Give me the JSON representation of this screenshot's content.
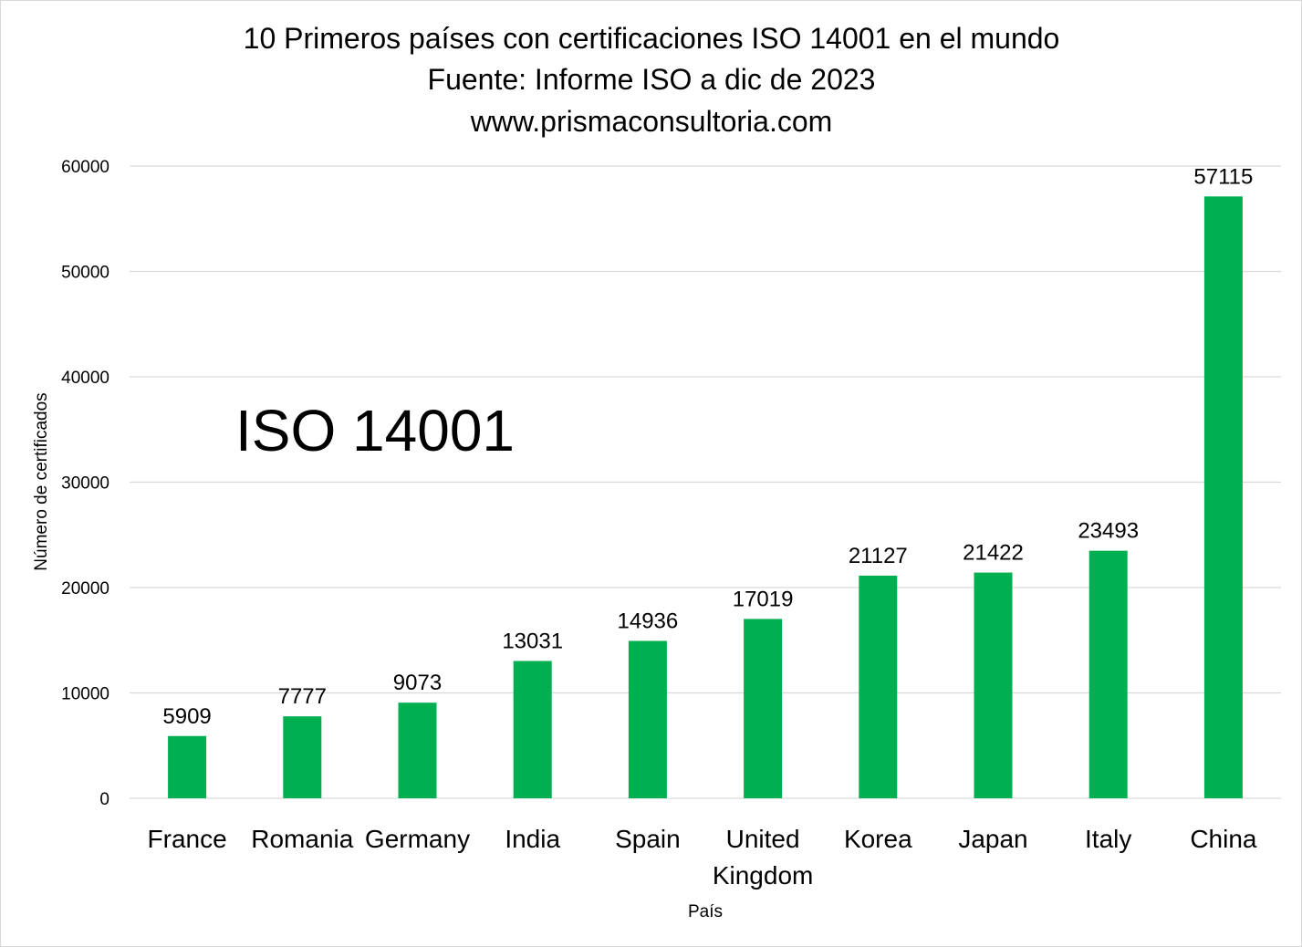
{
  "chart_data": {
    "type": "bar",
    "title_lines": [
      "10 Primeros países con certificaciones ISO 14001 en el mundo",
      "Fuente: Informe ISO a dic de 2023",
      "www.prismaconsultoria.com"
    ],
    "annotation": "ISO 14001",
    "xlabel": "País",
    "ylabel": "Número de certificados",
    "ylim": [
      0,
      60000
    ],
    "y_ticks": [
      0,
      10000,
      20000,
      30000,
      40000,
      50000,
      60000
    ],
    "y_tick_labels": [
      "0",
      "10000",
      "20000",
      "30000",
      "40000",
      "50000",
      "60000"
    ],
    "categories": [
      "France",
      "Romania",
      "Germany",
      "India",
      "Spain",
      "United Kingdom",
      "Korea",
      "Japan",
      "Italy",
      "China"
    ],
    "values": [
      5909,
      7777,
      9073,
      13031,
      14936,
      17019,
      21127,
      21422,
      23493,
      57115
    ],
    "data_labels": [
      "5909",
      "7777",
      "9073",
      "13031",
      "14936",
      "17019",
      "21127",
      "21422",
      "23493",
      "57115"
    ],
    "bar_color": "#00b050",
    "grid": true,
    "legend": "none"
  }
}
